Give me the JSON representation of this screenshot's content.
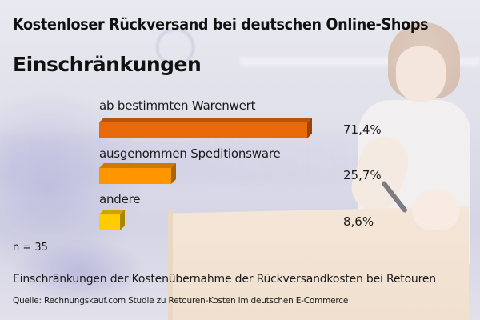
{
  "header": {
    "title": "Kostenloser Rückversand bei deutschen Online-Shops",
    "subtitle": "Einschränkungen"
  },
  "bars": [
    {
      "label": "ab bestimmten Warenwert",
      "value_text": "71,4%",
      "value": 71.4,
      "color": "#E8690A",
      "top_color": "#B9530A",
      "side_color": "#9A4508"
    },
    {
      "label": "ausgenommen Speditionsware",
      "value_text": "25,7%",
      "value": 25.7,
      "color": "#FF9600",
      "top_color": "#CC7A00",
      "side_color": "#A96400"
    },
    {
      "label": "andere",
      "value_text": "8,6%",
      "value": 8.6,
      "color": "#FFCC00",
      "top_color": "#CCA300",
      "side_color": "#A88600"
    }
  ],
  "footer": {
    "n": "n = 35",
    "caption": "Einschränkungen der Kostenübernahme der Rückversandkosten bei Retouren",
    "source": "Quelle: Rechnungskauf.com Studie zu Retouren-Kosten im deutschen E-Commerce"
  },
  "chart_data": {
    "type": "bar",
    "orientation": "horizontal",
    "title": "Kostenloser Rückversand bei deutschen Online-Shops",
    "subtitle": "Einschränkungen",
    "categories": [
      "ab bestimmten Warenwert",
      "ausgenommen Speditionsware",
      "andere"
    ],
    "values": [
      71.4,
      25.7,
      8.6
    ],
    "value_labels": [
      "71,4%",
      "25,7%",
      "8,6%"
    ],
    "unit": "%",
    "colors": [
      "#E8690A",
      "#FF9600",
      "#FFCC00"
    ],
    "sample_size": "n = 35",
    "xlabel": "",
    "ylabel": "",
    "grid": false,
    "legend": "none",
    "caption": "Einschränkungen der Kostenübernahme der Rückversandkosten bei Retouren",
    "source": "Quelle: Rechnungskauf.com Studie zu Retouren-Kosten im deutschen E-Commerce"
  }
}
